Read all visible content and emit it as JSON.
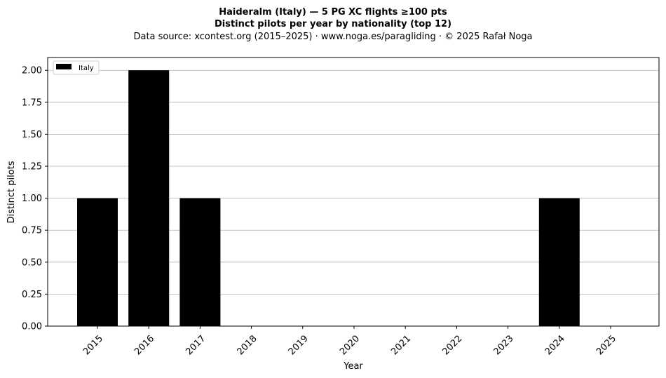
{
  "chart_data": {
    "type": "bar",
    "title_line1": "Haideralm (Italy)  —  5 PG XC flights ≥100 pts",
    "title_line2": "Distinct pilots per year by nationality (top 12)",
    "subtitle": "Data source: xcontest.org (2015–2025)  ·  www.noga.es/paragliding  ·  © 2025 Rafał Noga",
    "xlabel": "Year",
    "ylabel": "Distinct pilots",
    "categories": [
      "2015",
      "2016",
      "2017",
      "2018",
      "2019",
      "2020",
      "2021",
      "2022",
      "2023",
      "2024",
      "2025"
    ],
    "series": [
      {
        "name": "Italy",
        "values": [
          1,
          2,
          1,
          0,
          0,
          0,
          0,
          0,
          0,
          1,
          0
        ],
        "color": "#000000"
      }
    ],
    "ylim": [
      0,
      2.1
    ],
    "yticks": [
      "0.00",
      "0.25",
      "0.50",
      "0.75",
      "1.00",
      "1.25",
      "1.50",
      "1.75",
      "2.00"
    ],
    "grid": "y",
    "legend_position": "top-left"
  }
}
